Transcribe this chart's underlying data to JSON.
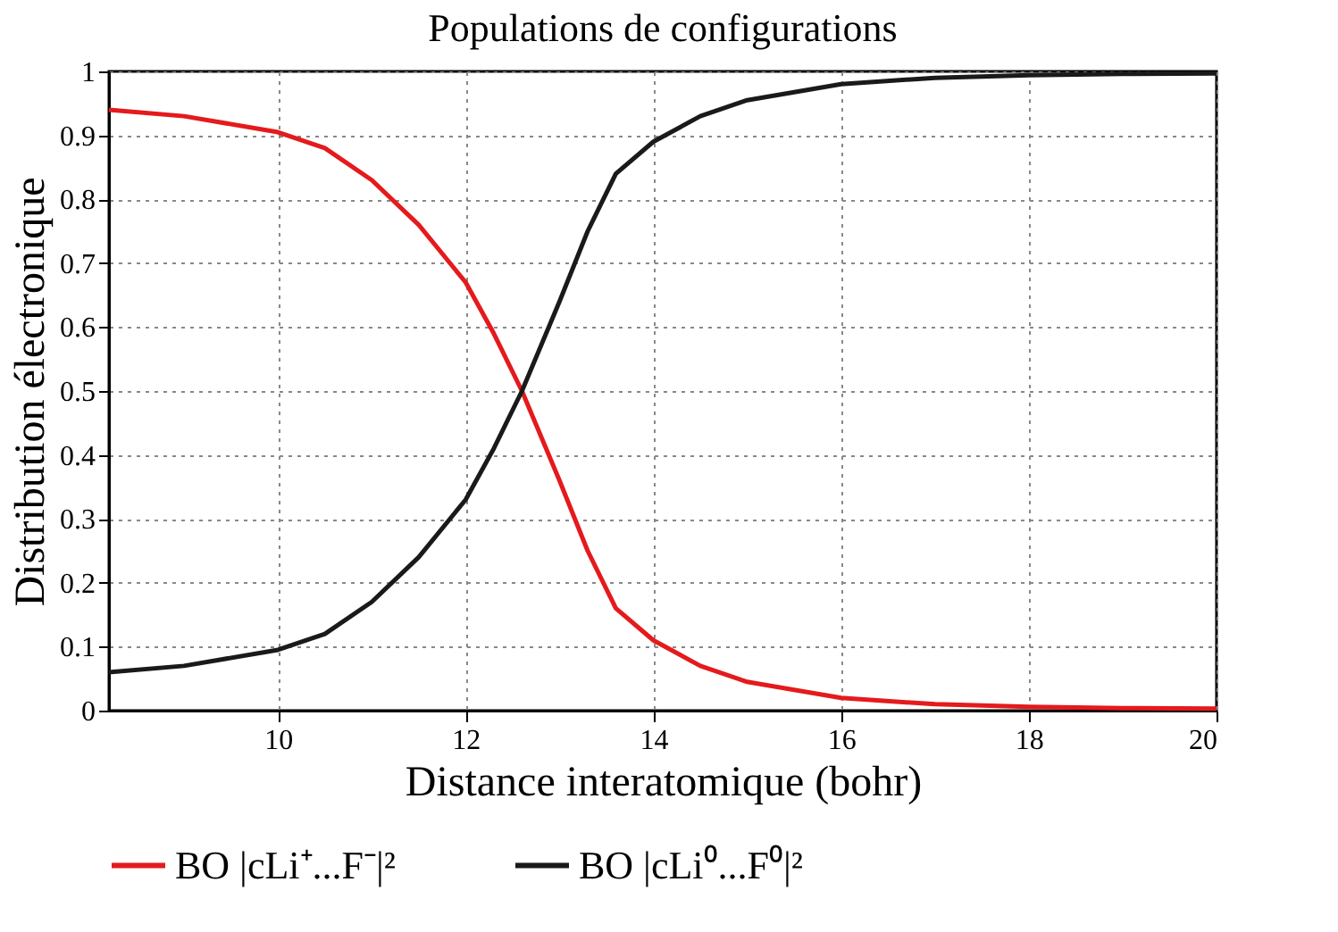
{
  "chart_data": {
    "type": "line",
    "title": "Populations de configurations",
    "xlabel": "Distance interatomique (bohr)",
    "ylabel": "Distribution électronique",
    "xlim": [
      8.2,
      20
    ],
    "xticks": [
      10,
      12,
      14,
      16,
      18,
      20
    ],
    "ylim": [
      0,
      1
    ],
    "yticks": [
      0,
      0.1,
      0.2,
      0.3,
      0.4,
      0.5,
      0.6,
      0.7,
      0.8,
      0.9,
      1
    ],
    "grid": true,
    "legend": "bottom",
    "line_style": "solid",
    "marker": "none",
    "series": [
      {
        "name": "BO |cLi⁺...F⁻|²",
        "color": "#e41a1c",
        "x": [
          8.2,
          9,
          10,
          10.5,
          11,
          11.5,
          12,
          12.3,
          12.6,
          13,
          13.3,
          13.6,
          14,
          14.5,
          15,
          16,
          17,
          18,
          19,
          20
        ],
        "values": [
          0.94,
          0.93,
          0.905,
          0.88,
          0.83,
          0.76,
          0.67,
          0.59,
          0.5,
          0.36,
          0.25,
          0.16,
          0.11,
          0.07,
          0.045,
          0.02,
          0.01,
          0.006,
          0.004,
          0.003
        ]
      },
      {
        "name": "BO |cLi⁰...F⁰|²",
        "color": "#1a1a1a",
        "x": [
          8.2,
          9,
          10,
          10.5,
          11,
          11.5,
          12,
          12.3,
          12.6,
          13,
          13.3,
          13.6,
          14,
          14.5,
          15,
          16,
          17,
          18,
          19,
          20
        ],
        "values": [
          0.06,
          0.07,
          0.095,
          0.12,
          0.17,
          0.24,
          0.33,
          0.41,
          0.5,
          0.64,
          0.75,
          0.84,
          0.89,
          0.93,
          0.955,
          0.98,
          0.99,
          0.994,
          0.996,
          0.997
        ]
      }
    ]
  }
}
